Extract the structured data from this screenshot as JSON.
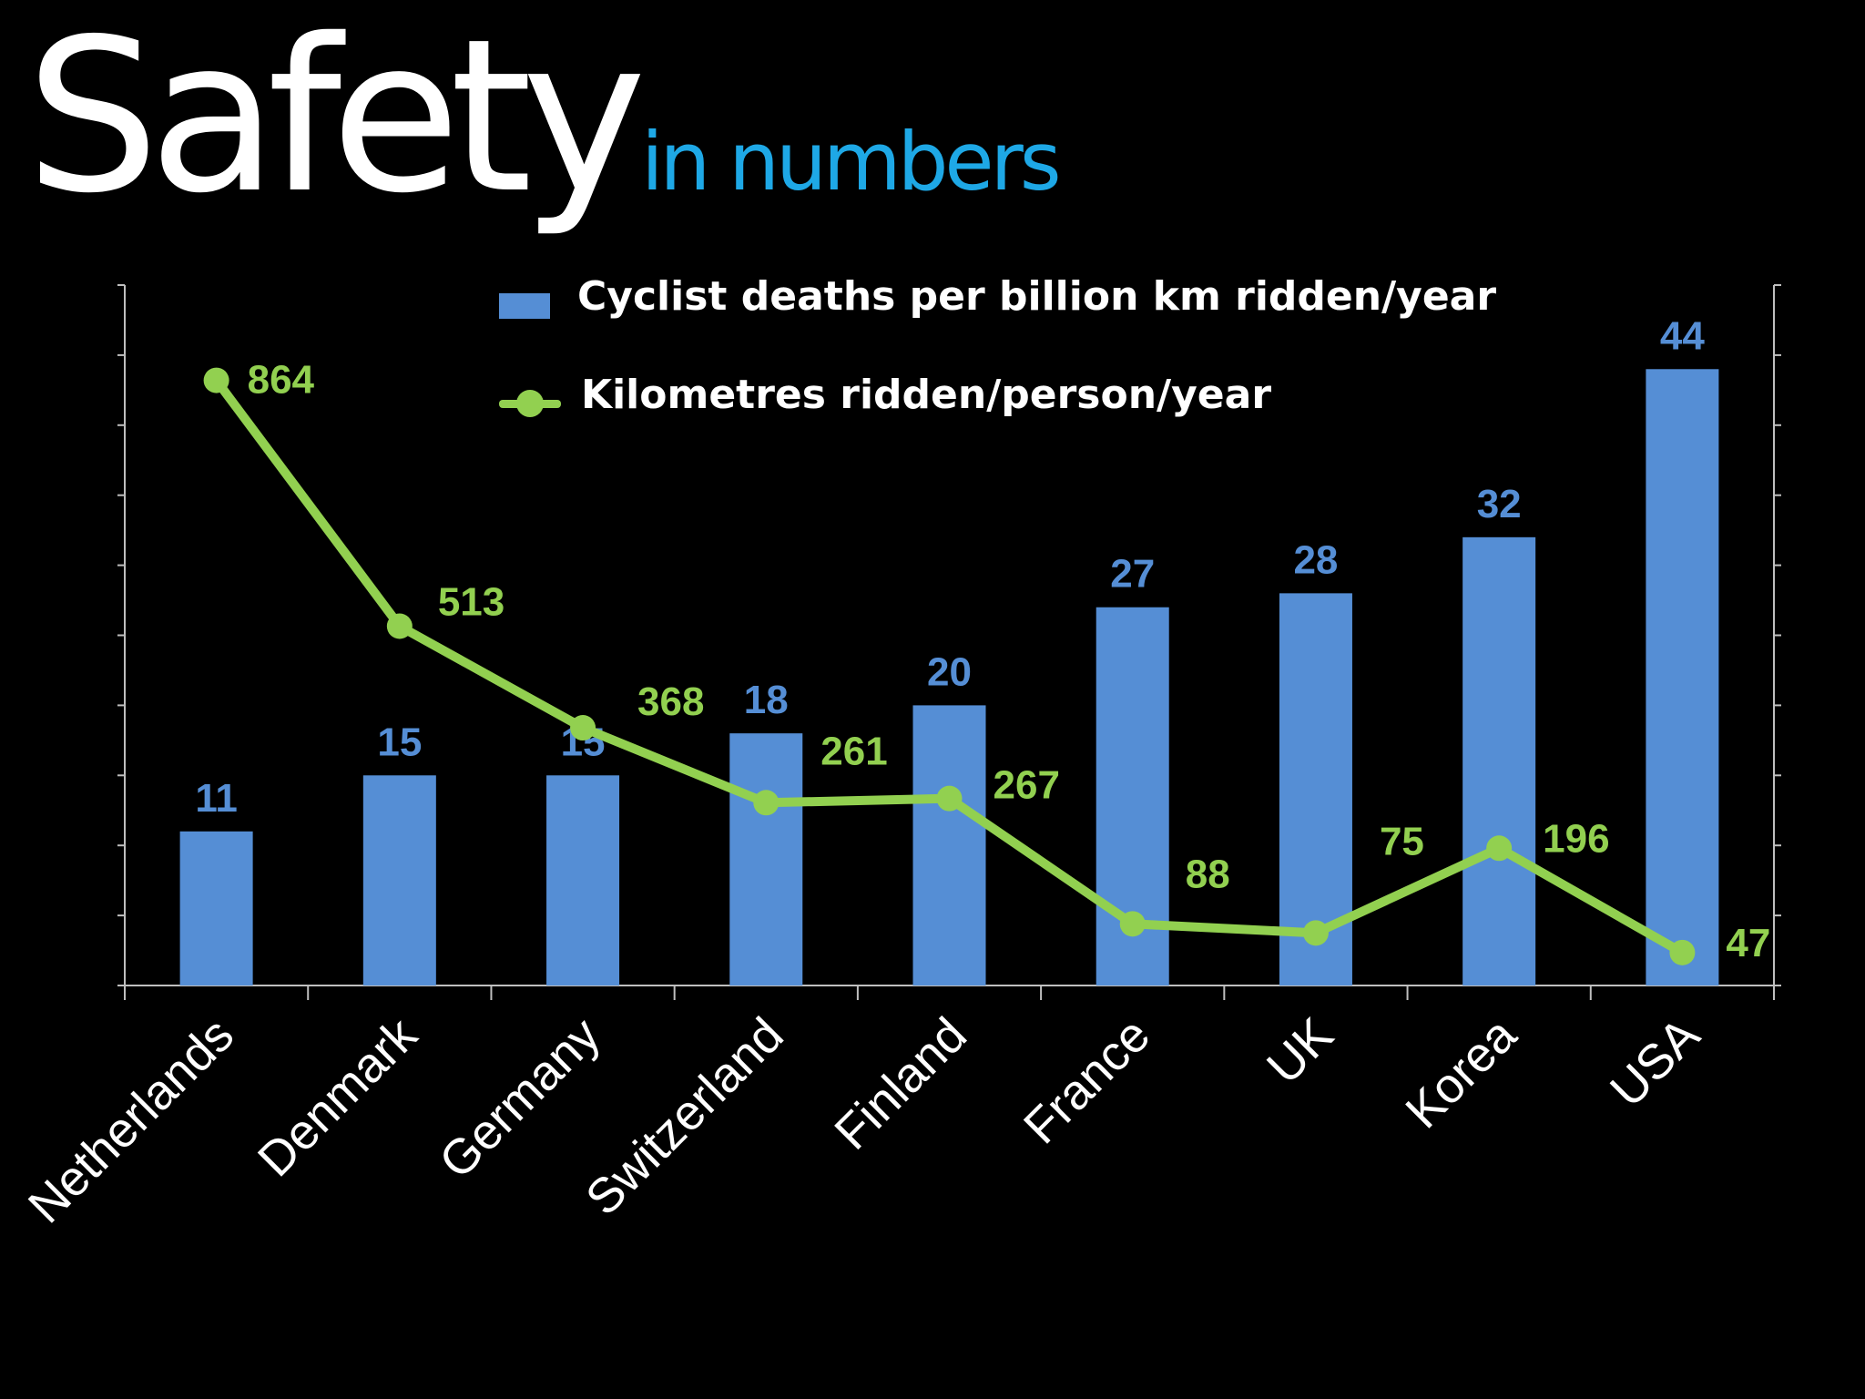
{
  "title": {
    "main": "Safety",
    "sub": "in numbers"
  },
  "colors": {
    "background": "#000000",
    "title_main": "#ffffff",
    "title_sub": "#1ea8e6",
    "bar": "#558ed5",
    "line": "#92d050",
    "axis": "#bfbfbf",
    "category_label": "#ffffff"
  },
  "chart_data": {
    "type": "bar",
    "categories": [
      "Netherlands",
      "Denmark",
      "Germany",
      "Switzerland",
      "Finland",
      "France",
      "UK",
      "Korea",
      "USA"
    ],
    "series": [
      {
        "name": "Cyclist deaths per billion km ridden/year",
        "type": "bar",
        "axis": "left",
        "values": [
          11,
          15,
          15,
          18,
          20,
          27,
          28,
          32,
          44
        ],
        "data_labels": [
          "11",
          "15",
          "15",
          "18",
          "20",
          "27",
          "28",
          "32",
          "44"
        ]
      },
      {
        "name": "Kilometres ridden/person/year",
        "type": "line",
        "axis": "right",
        "values": [
          864,
          513,
          368,
          261,
          267,
          88,
          75,
          196,
          47
        ],
        "data_labels": [
          "864",
          "513",
          "368",
          "261",
          "267",
          "88",
          "75",
          "196",
          "47"
        ]
      }
    ],
    "left_axis": {
      "range": [
        0,
        50
      ],
      "ticks": 10,
      "tick_labels_shown": false
    },
    "right_axis": {
      "range": [
        0,
        1000
      ],
      "ticks": 10,
      "tick_labels_shown": false
    },
    "grid": false,
    "legend_position": "top-center",
    "xlabel": "",
    "ylabel": ""
  }
}
